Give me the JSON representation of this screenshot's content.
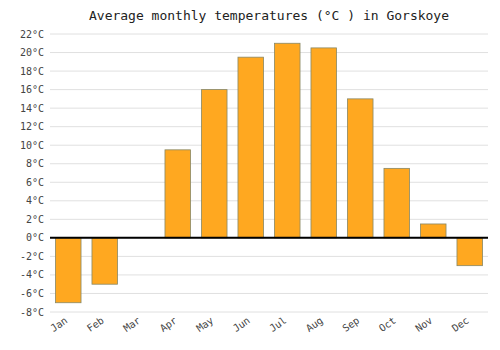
{
  "chart_data": {
    "type": "bar",
    "title": "Average monthly temperatures (°C ) in Gorskoye",
    "categories": [
      "Jan",
      "Feb",
      "Mar",
      "Apr",
      "May",
      "Jun",
      "Jul",
      "Aug",
      "Sep",
      "Oct",
      "Nov",
      "Dec"
    ],
    "values": [
      -7,
      -5,
      0,
      9.5,
      16,
      19.5,
      21,
      20.5,
      15,
      7.5,
      1.5,
      -3
    ],
    "color": "#FFA820",
    "ylim": [
      -8,
      22
    ],
    "yticks": [
      {
        "value": -8,
        "label": "-8°C"
      },
      {
        "value": -6,
        "label": "-6°C"
      },
      {
        "value": -4,
        "label": "-4°C"
      },
      {
        "value": -2,
        "label": "-2°C"
      },
      {
        "value": 0,
        "label": "0°C"
      },
      {
        "value": 2,
        "label": "2°C"
      },
      {
        "value": 4,
        "label": "4°C"
      },
      {
        "value": 6,
        "label": "6°C"
      },
      {
        "value": 8,
        "label": "8°C"
      },
      {
        "value": 10,
        "label": "10°C"
      },
      {
        "value": 12,
        "label": "12°C"
      },
      {
        "value": 14,
        "label": "14°C"
      },
      {
        "value": 16,
        "label": "16°C"
      },
      {
        "value": 18,
        "label": "18°C"
      },
      {
        "value": 20,
        "label": "20°C"
      },
      {
        "value": 22,
        "label": "22°C"
      }
    ],
    "grid": true
  }
}
